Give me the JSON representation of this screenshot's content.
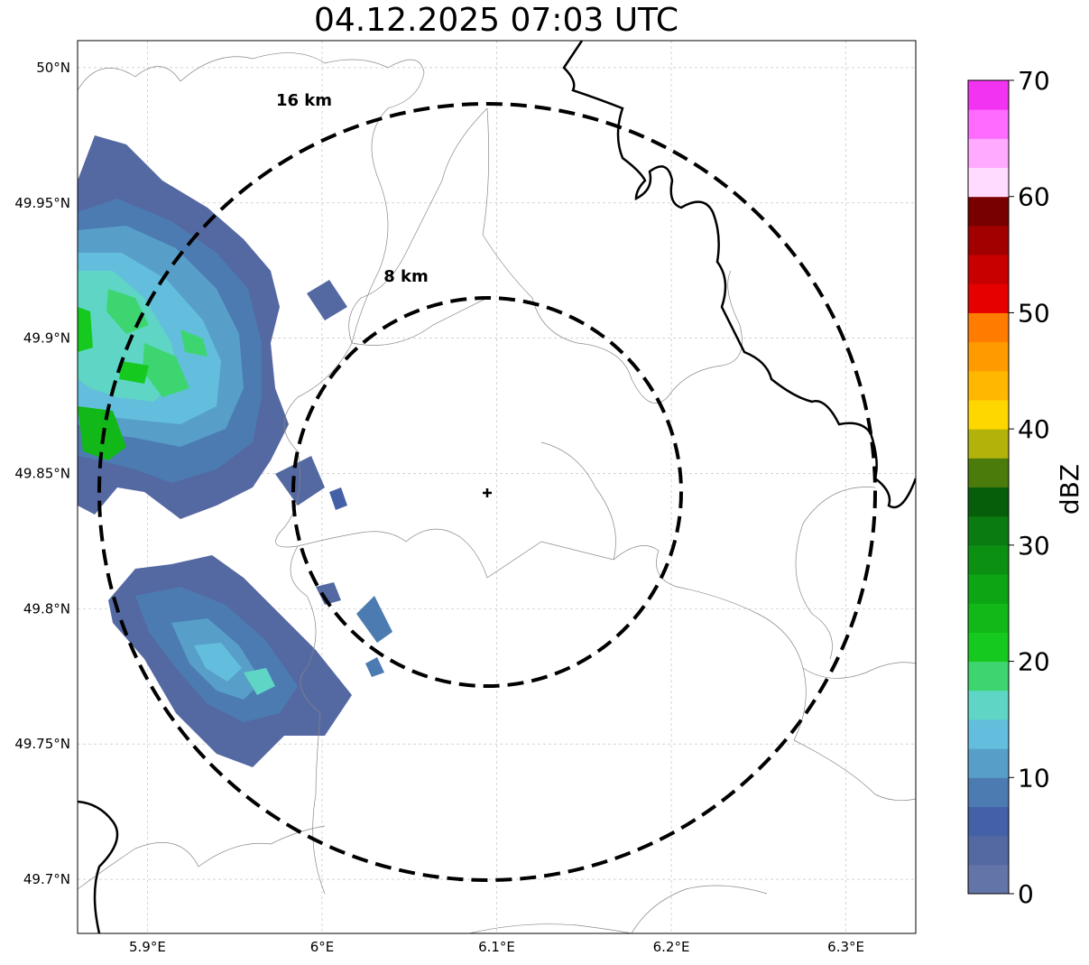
{
  "title": "04.12.2025 07:03 UTC",
  "map": {
    "lon_range": [
      5.86,
      6.34
    ],
    "lat_range": [
      49.68,
      50.01
    ],
    "x_ticks": [
      5.9,
      6.0,
      6.1,
      6.2,
      6.3
    ],
    "x_tick_labels": [
      "5.9°E",
      "6°E",
      "6.1°E",
      "6.2°E",
      "6.3°E"
    ],
    "y_ticks": [
      50.0,
      49.95,
      49.9,
      49.85,
      49.8,
      49.75,
      49.7
    ],
    "y_tick_labels": [
      "50°N",
      "49.95°N",
      "49.9°N",
      "49.85°N",
      "49.8°N",
      "49.75°N",
      "49.7°N"
    ],
    "grid": true,
    "center": {
      "lon": 6.095,
      "lat": 49.842,
      "marker": "plus"
    },
    "range_rings": [
      {
        "label": "8 km",
        "radius_km": 8
      },
      {
        "label": "16 km",
        "radius_km": 16
      }
    ]
  },
  "colorbar": {
    "label": "dBZ",
    "min": 0,
    "max": 70,
    "tick_values": [
      0,
      10,
      20,
      30,
      40,
      50,
      60,
      70
    ],
    "tick_labels": [
      "0",
      "10",
      "20",
      "30",
      "40",
      "50",
      "60",
      "70"
    ],
    "colors": [
      "#6274a8",
      "#5468a2",
      "#4461a7",
      "#4c7bb2",
      "#579fc8",
      "#63bedd",
      "#5fd5c5",
      "#3dd570",
      "#16c91e",
      "#11b817",
      "#0ea514",
      "#0c9012",
      "#0a7b10",
      "#065e0b",
      "#4a7b0b",
      "#b2b20a",
      "#ffd700",
      "#ffb700",
      "#ff9b00",
      "#ff7c00",
      "#e60000",
      "#c80000",
      "#a20000",
      "#780000",
      "#ffdcff",
      "#ffaaff",
      "#ff6bff",
      "#f233f2"
    ]
  },
  "echo_regions": [
    {
      "name": "north-west cell",
      "dbz": [
        0,
        22
      ]
    },
    {
      "name": "south-west cell",
      "dbz": [
        0,
        15
      ]
    }
  ]
}
